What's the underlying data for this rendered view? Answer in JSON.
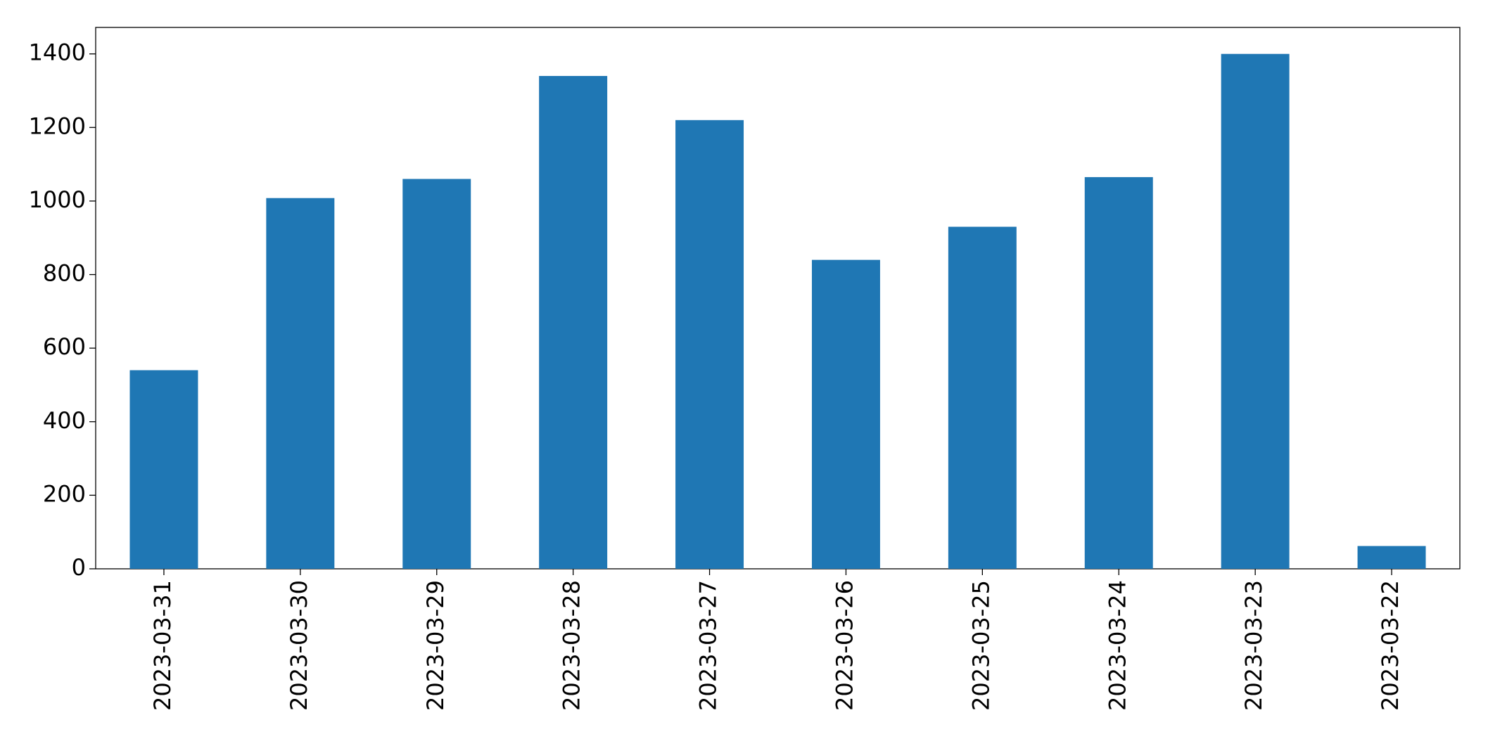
{
  "chart_data": {
    "type": "bar",
    "categories": [
      "2023-03-31",
      "2023-03-30",
      "2023-03-29",
      "2023-03-28",
      "2023-03-27",
      "2023-03-26",
      "2023-03-25",
      "2023-03-24",
      "2023-03-23",
      "2023-03-22"
    ],
    "values": [
      540,
      1008,
      1060,
      1340,
      1220,
      840,
      930,
      1065,
      1400,
      62
    ],
    "color": "#1f77b4",
    "ylim": [
      0,
      1472
    ],
    "yticks": [
      0,
      200,
      400,
      600,
      800,
      1000,
      1200,
      1400
    ],
    "grid": false
  }
}
